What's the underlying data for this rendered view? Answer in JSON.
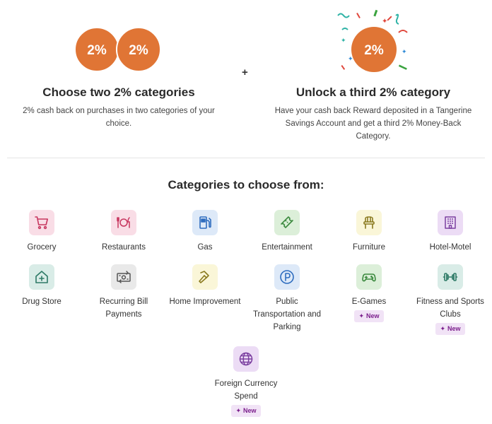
{
  "offer": {
    "left": {
      "circle1": "2%",
      "circle2": "2%",
      "heading": "Choose two 2% categories",
      "description": "2% cash back on purchases in two categories of your choice."
    },
    "plus": "+",
    "right": {
      "circle": "2%",
      "heading": "Unlock a third 2% category",
      "description": "Have your cash back Reward deposited in a Tangerine Savings Account and get a third 2% Money-Back Category."
    }
  },
  "categories_title": "Categories to choose from:",
  "categories": [
    {
      "label": "Grocery",
      "icon": "shopping-cart-icon",
      "color": "#c7365f"
    },
    {
      "label": "Restaurants",
      "icon": "dining-icon",
      "color": "#c7365f"
    },
    {
      "label": "Gas",
      "icon": "gas-pump-icon",
      "color": "#2f6dbf"
    },
    {
      "label": "Entertainment",
      "icon": "ticket-icon",
      "color": "#3c8a3f"
    },
    {
      "label": "Furniture",
      "icon": "chair-icon",
      "color": "#8a7a1f"
    },
    {
      "label": "Hotel-Motel",
      "icon": "hotel-icon",
      "color": "#7b3fa0"
    },
    {
      "label": "Drug Store",
      "icon": "pharmacy-icon",
      "color": "#2d7a66"
    },
    {
      "label": "Recurring Bill Payments",
      "icon": "bill-icon",
      "color": "#555555"
    },
    {
      "label": "Home Improvement",
      "icon": "hammer-icon",
      "color": "#8a7a1f"
    },
    {
      "label": "Public Transportation and Parking",
      "icon": "parking-icon",
      "color": "#2f6dbf"
    },
    {
      "label": "E-Games",
      "icon": "gamepad-icon",
      "color": "#3c8a3f",
      "badge": "New"
    },
    {
      "label": "Fitness and Sports Clubs",
      "icon": "dumbbell-icon",
      "color": "#2d7a66",
      "badge": "New"
    },
    {
      "label": "Foreign Currency Spend",
      "icon": "globe-icon",
      "color": "#7b3fa0",
      "badge": "New"
    }
  ],
  "colors": {
    "accent_orange": "#e07535",
    "badge_bg": "#f1e3f6",
    "badge_text": "#7b1e8c"
  }
}
